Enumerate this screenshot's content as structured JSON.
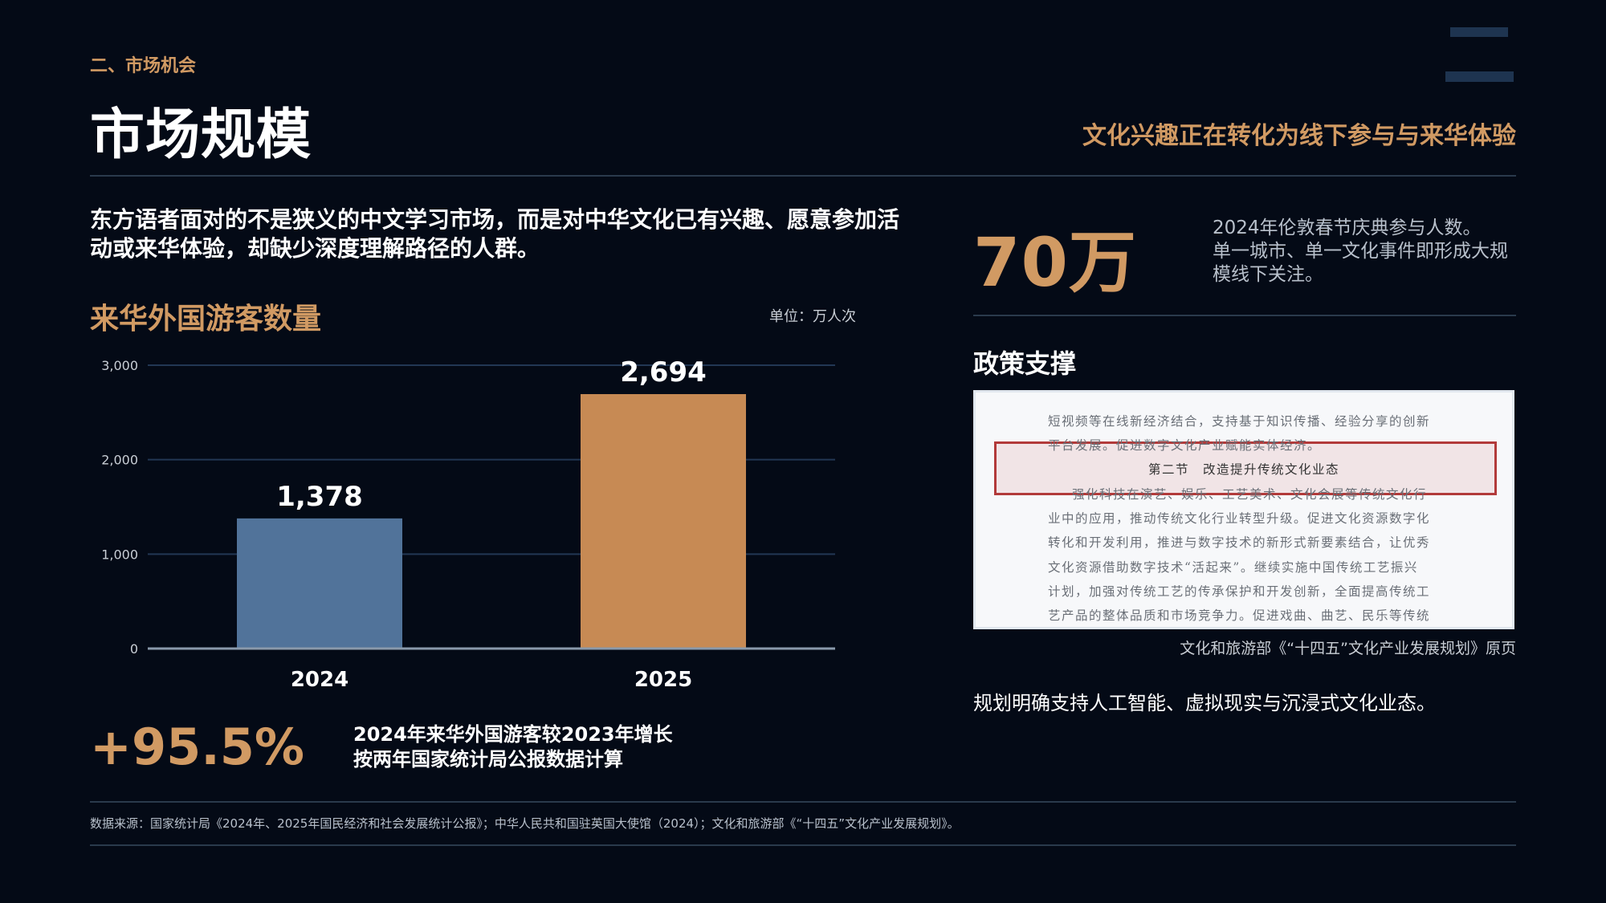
{
  "header": {
    "section_label": "二、市场机会",
    "page_title": "市场规模",
    "tagline": "文化兴趣正在转化为线下参与与来华体验"
  },
  "intro": {
    "line1": "东方语者面对的不是狭义的中文学习市场，而是对中华文化已有兴趣、愿意参加活",
    "line2": "动或来华体验，却缺少深度理解路径的人群。"
  },
  "chart_section": {
    "title": "来华外国游客数量",
    "unit": "单位：万人次"
  },
  "chart_data": {
    "type": "bar",
    "categories": [
      "2024",
      "2025"
    ],
    "values": [
      1378,
      2694
    ],
    "value_labels": [
      "1,378",
      "2,694"
    ],
    "ylim": [
      0,
      3000
    ],
    "yticks": [
      0,
      1000,
      2000,
      3000
    ],
    "ytick_labels": [
      "0",
      "1,000",
      "2,000",
      "3,000"
    ],
    "grid": true,
    "colors": [
      "#51739a",
      "#c78a54"
    ]
  },
  "growth": {
    "value": "+95.5%",
    "line1": "2024年来华外国游客较2023年增长",
    "line2": "按两年国家统计局公报数据计算"
  },
  "stat": {
    "value": "70万",
    "desc_line1": "2024年伦敦春节庆典参与人数。",
    "desc_line2": "单一城市、单一文化事件即形成大规",
    "desc_line3": "模线下关注。"
  },
  "policy": {
    "title": "政策支撑",
    "doc_lines": [
      "短视频等在线新经济结合，支持基于知识传播、经验分享的创新",
      "平台发展。促进数字文化产业赋能实体经济。",
      "第二节　改造提升传统文化业态",
      "强化科技在演艺、娱乐、工艺美术、文化会展等传统文化行",
      "业中的应用，推动传统文化行业转型升级。促进文化资源数字化",
      "转化和开发利用，推进与数字技术的新形式新要素结合，让优秀",
      "文化资源借助数字技术“活起来”。继续实施中国传统工艺振兴",
      "计划，加强对传统工艺的传承保护和开发创新，全面提高传统工",
      "艺产品的整体品质和市场竞争力。促进戏曲、曲艺、民乐等传统"
    ],
    "caption": "文化和旅游部《“十四五”文化产业发展规划》原页",
    "desc": "规划明确支持人工智能、虚拟现实与沉浸式文化业态。"
  },
  "footer": {
    "source": "数据来源：国家统计局《2024年、2025年国民经济和社会发展统计公报》；中华人民共和国驻英国大使馆（2024）；文化和旅游部《“十四五”文化产业发展规划》。"
  },
  "colors": {
    "background": "#040a16",
    "accent": "#d19a63",
    "bar_2024": "#51739a",
    "bar_2025": "#c78a54"
  }
}
